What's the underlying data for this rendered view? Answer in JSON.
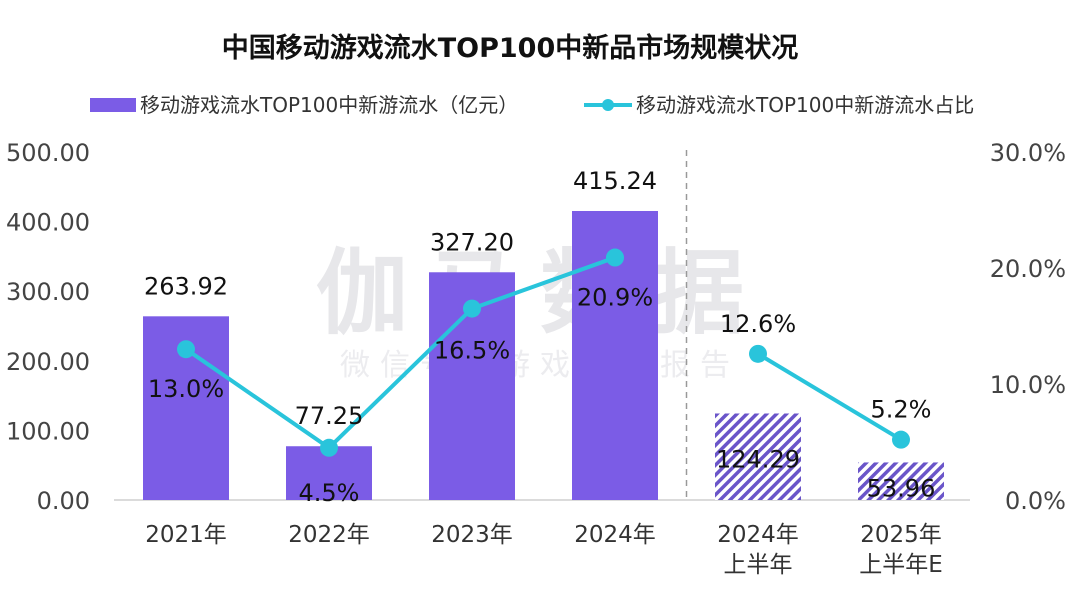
{
  "chart_data": {
    "type": "bar",
    "title": "中国移动游戏流水TOP100中新品市场规模状况",
    "watermark": {
      "main": "伽马数据",
      "sub": "微信号：游戏产业报告"
    },
    "categories": [
      "2021年",
      "2022年",
      "2023年",
      "2024年",
      "2024年\n上半年",
      "2025年\n上半年E"
    ],
    "category_lines": [
      [
        "2021年"
      ],
      [
        "2022年"
      ],
      [
        "2023年"
      ],
      [
        "2024年"
      ],
      [
        "2024年",
        "上半年"
      ],
      [
        "2025年",
        "上半年E"
      ]
    ],
    "series": [
      {
        "name": "移动游戏流水TOP100中新游流水（亿元）",
        "type": "bar",
        "axis": "left",
        "values": [
          263.92,
          77.25,
          327.2,
          415.24,
          124.29,
          53.96
        ],
        "labels": [
          "263.92",
          "77.25",
          "327.20",
          "415.24",
          "124.29",
          "53.96"
        ],
        "hatched": [
          false,
          false,
          false,
          false,
          true,
          true
        ],
        "color": "#7B5CE6"
      },
      {
        "name": "移动游戏流水TOP100中新游流水占比",
        "type": "line",
        "axis": "right",
        "values": [
          13.0,
          4.5,
          16.5,
          20.9,
          12.6,
          5.2
        ],
        "labels": [
          "13.0%",
          "4.5%",
          "16.5%",
          "20.9%",
          "12.6%",
          "5.2%"
        ],
        "segments": [
          [
            0,
            3
          ],
          [
            4,
            5
          ]
        ],
        "color": "#29C4DB"
      }
    ],
    "y_left": {
      "min": 0,
      "max": 500,
      "ticks": [
        "0.00",
        "100.00",
        "200.00",
        "300.00",
        "400.00",
        "500.00"
      ]
    },
    "y_right": {
      "min": 0,
      "max": 30,
      "ticks": [
        "0.0%",
        "10.0%",
        "20.0%",
        "30.0%"
      ]
    },
    "divider_after_index": 3,
    "legend_position": "top"
  }
}
